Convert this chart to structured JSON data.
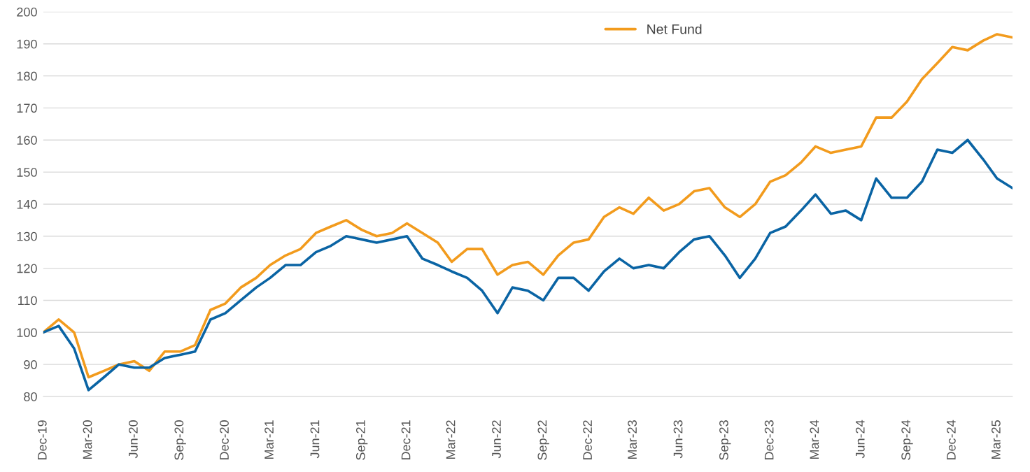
{
  "chart_data": {
    "type": "line",
    "x": [
      "2019-12",
      "2020-01",
      "2020-02",
      "2020-03",
      "2020-04",
      "2020-05",
      "2020-06",
      "2020-07",
      "2020-08",
      "2020-09",
      "2020-10",
      "2020-11",
      "2020-12",
      "2021-01",
      "2021-02",
      "2021-03",
      "2021-04",
      "2021-05",
      "2021-06",
      "2021-07",
      "2021-08",
      "2021-09",
      "2021-10",
      "2021-11",
      "2021-12",
      "2022-01",
      "2022-02",
      "2022-03",
      "2022-04",
      "2022-05",
      "2022-06",
      "2022-07",
      "2022-08",
      "2022-09",
      "2022-10",
      "2022-11",
      "2022-12",
      "2023-01",
      "2023-02",
      "2023-03",
      "2023-04",
      "2023-05",
      "2023-06",
      "2023-07",
      "2023-08",
      "2023-09",
      "2023-10",
      "2023-11",
      "2023-12",
      "2024-01",
      "2024-02",
      "2024-03",
      "2024-04",
      "2024-05",
      "2024-06",
      "2024-07",
      "2024-08",
      "2024-09",
      "2024-10",
      "2024-11",
      "2024-12",
      "2025-01",
      "2025-02",
      "2025-03",
      "2025-04"
    ],
    "series": [
      {
        "name": "Net Fund",
        "color": "#f29b1d",
        "values": [
          100,
          104,
          100,
          86,
          88,
          90,
          91,
          88,
          94,
          94,
          96,
          107,
          109,
          114,
          117,
          121,
          124,
          126,
          131,
          133,
          135,
          132,
          130,
          131,
          134,
          131,
          128,
          122,
          126,
          126,
          118,
          121,
          122,
          118,
          124,
          128,
          129,
          136,
          139,
          137,
          142,
          138,
          140,
          144,
          145,
          139,
          136,
          140,
          147,
          149,
          153,
          158,
          156,
          157,
          158,
          167,
          167,
          172,
          179,
          184,
          189,
          188,
          191,
          193,
          192
        ]
      },
      {
        "color": "#0a64a4",
        "values": [
          100,
          102,
          95,
          82,
          86,
          90,
          89,
          89,
          92,
          93,
          94,
          104,
          106,
          110,
          114,
          117,
          121,
          121,
          125,
          127,
          130,
          129,
          128,
          129,
          130,
          123,
          121,
          119,
          117,
          113,
          106,
          114,
          113,
          110,
          117,
          117,
          113,
          119,
          123,
          120,
          121,
          120,
          125,
          129,
          130,
          124,
          117,
          123,
          131,
          133,
          138,
          143,
          137,
          138,
          135,
          148,
          142,
          142,
          147,
          157,
          156,
          160,
          154,
          148,
          145
        ]
      }
    ],
    "xlim": [
      "2019-12",
      "2025-04"
    ],
    "xticks": [
      {
        "value": "2019-12",
        "label": "Dec-19"
      },
      {
        "value": "2020-03",
        "label": "Mar-20"
      },
      {
        "value": "2020-06",
        "label": "Jun-20"
      },
      {
        "value": "2020-09",
        "label": "Sep-20"
      },
      {
        "value": "2020-12",
        "label": "Dec-20"
      },
      {
        "value": "2021-03",
        "label": "Mar-21"
      },
      {
        "value": "2021-06",
        "label": "Jun-21"
      },
      {
        "value": "2021-09",
        "label": "Sep-21"
      },
      {
        "value": "2021-12",
        "label": "Dec-21"
      },
      {
        "value": "2022-03",
        "label": "Mar-22"
      },
      {
        "value": "2022-06",
        "label": "Jun-22"
      },
      {
        "value": "2022-09",
        "label": "Sep-22"
      },
      {
        "value": "2022-12",
        "label": "Dec-22"
      },
      {
        "value": "2023-03",
        "label": "Mar-23"
      },
      {
        "value": "2023-06",
        "label": "Jun-23"
      },
      {
        "value": "2023-09",
        "label": "Sep-23"
      },
      {
        "value": "2023-12",
        "label": "Dec-23"
      },
      {
        "value": "2024-03",
        "label": "Mar-24"
      },
      {
        "value": "2024-06",
        "label": "Jun-24"
      },
      {
        "value": "2024-09",
        "label": "Sep-24"
      },
      {
        "value": "2024-12",
        "label": "Dec-24"
      },
      {
        "value": "2025-03",
        "label": "Mar-25"
      }
    ],
    "ylim": [
      80,
      200
    ],
    "yticks": [
      80,
      90,
      100,
      110,
      120,
      130,
      140,
      150,
      160,
      170,
      180,
      190,
      200
    ],
    "grid": "y",
    "legend": "top",
    "line_style": "solid"
  }
}
